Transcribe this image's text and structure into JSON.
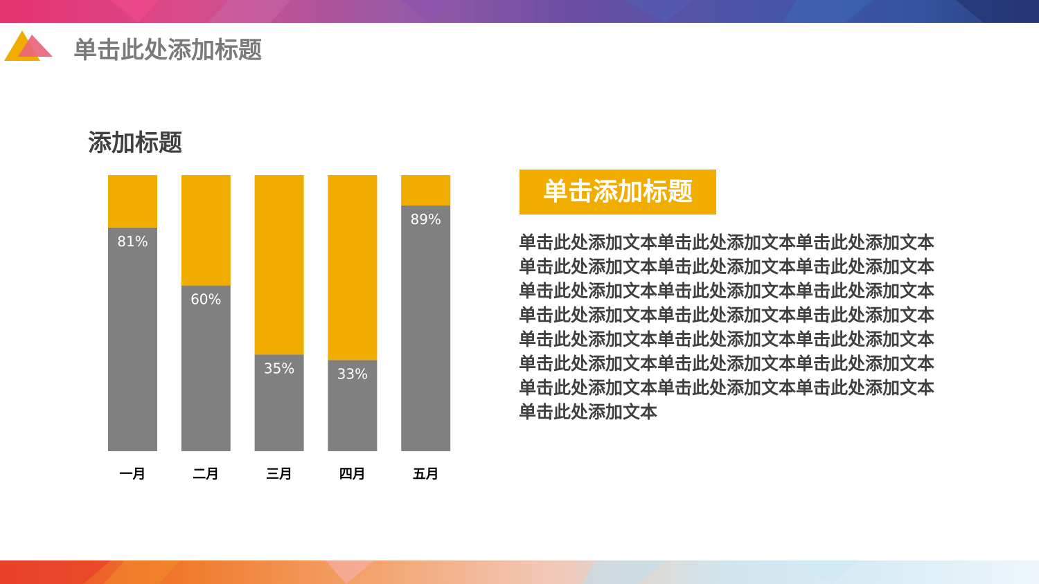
{
  "header": {
    "title": "单击此处添加标题"
  },
  "chart_title": "添加标题",
  "chart_data": {
    "type": "bar",
    "stacked": true,
    "categories": [
      "一月",
      "二月",
      "三月",
      "四月",
      "五月"
    ],
    "series": [
      {
        "values": [
          81,
          60,
          35,
          33,
          89
        ],
        "color": "#808080"
      },
      {
        "values": [
          19,
          40,
          65,
          67,
          11
        ],
        "color": "#f0ad00"
      }
    ],
    "data_labels": [
      "81%",
      "60%",
      "35%",
      "33%",
      "89%"
    ],
    "ylim": [
      0,
      100
    ],
    "grid": false
  },
  "text_box": {
    "title": "单击添加标题",
    "body": "单击此处添加文本单击此处添加文本单击此处添加文本单击此处添加文本单击此处添加文本单击此处添加文本单击此处添加文本单击此处添加文本单击此处添加文本单击此处添加文本单击此处添加文本单击此处添加文本单击此处添加文本单击此处添加文本单击此处添加文本单击此处添加文本单击此处添加文本单击此处添加文本单击此处添加文本单击此处添加文本单击此处添加文本单击此处添加文本"
  },
  "colors": {
    "accent": "#f0ad00",
    "bar_gray": "#808080",
    "title_gray": "#7a7a7a",
    "text_dark": "#404040"
  }
}
